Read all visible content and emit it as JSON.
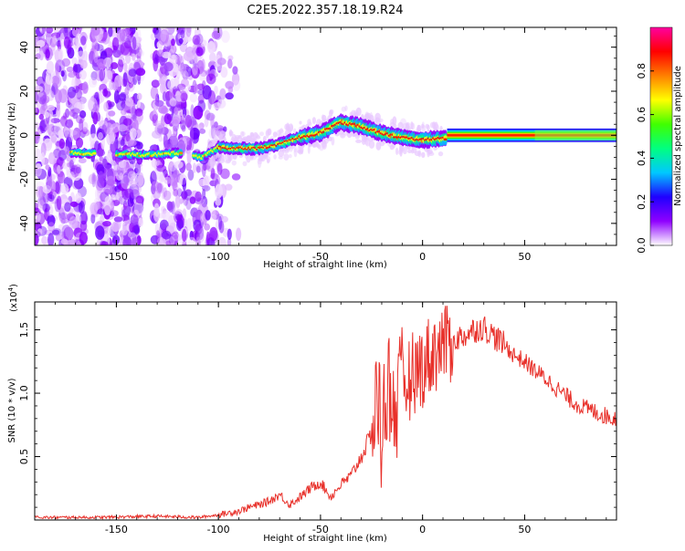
{
  "title": "C2E5.2022.357.18.19.R24",
  "chart_data": [
    {
      "type": "heatmap",
      "xlabel": "Height of straight line (km)",
      "ylabel": "Frequency (Hz)",
      "xlim": [
        -190,
        95
      ],
      "ylim": [
        -50,
        49
      ],
      "x_ticks": [
        -150,
        -100,
        -50,
        0,
        50
      ],
      "y_ticks": [
        -40,
        -20,
        0,
        20,
        40
      ],
      "x_tick_labels": [
        "-150",
        "-100",
        "-50",
        "0",
        "50"
      ],
      "y_tick_labels": [
        "-40",
        "-20",
        "0",
        "20",
        "40"
      ],
      "ridge": {
        "x": [
          -170,
          -150,
          -135,
          -120,
          -108,
          -100,
          -90,
          -80,
          -70,
          -60,
          -50,
          -40,
          -30,
          -20,
          -10,
          0,
          10,
          20,
          40,
          60,
          80,
          95
        ],
        "y": [
          -8,
          -8.5,
          -9,
          -8,
          -10,
          -5.5,
          -6,
          -6,
          -4,
          -1,
          1,
          6,
          4,
          1,
          -1,
          -2,
          -1.5,
          0,
          0,
          0,
          0,
          0
        ]
      },
      "colorbar": {
        "label": "Normalized spectral amplitude",
        "range": [
          0,
          1
        ],
        "ticks": [
          0.0,
          0.2,
          0.4,
          0.6,
          0.8
        ],
        "tick_labels": [
          "0.0",
          "0.2",
          "0.4",
          "0.6",
          "0.8"
        ],
        "colormap": [
          "#ffffff",
          "#8f00ff",
          "#1f00ff",
          "#00c8ff",
          "#00ff80",
          "#40ff00",
          "#ffff00",
          "#ff8000",
          "#ff0000",
          "#ff00a0"
        ]
      }
    },
    {
      "type": "line",
      "xlabel": "Height of straight line (km)",
      "ylabel": "SNR (10 * v/v)",
      "scale_label": "(x10",
      "scale_exp": "4",
      "scale_close": ")",
      "xlim": [
        -190,
        95
      ],
      "ylim": [
        0,
        1.72
      ],
      "x_ticks": [
        -150,
        -100,
        -50,
        0,
        50
      ],
      "y_ticks": [
        0.5,
        1.0,
        1.5
      ],
      "x_tick_labels": [
        "-150",
        "-100",
        "-50",
        "0",
        "50"
      ],
      "y_tick_labels": [
        "0.5",
        "1.0",
        "1.5"
      ],
      "color": "#e8302a",
      "series": [
        {
          "x": [
            -190,
            -160,
            -130,
            -110,
            -100,
            -90,
            -85,
            -80,
            -75,
            -70,
            -65,
            -60,
            -55,
            -50,
            -45,
            -40,
            -35,
            -30,
            -25,
            -22,
            -20,
            -18,
            -15,
            -12,
            -10,
            -5,
            0,
            5,
            10,
            15,
            20,
            25,
            30,
            35,
            40,
            45,
            50,
            55,
            60,
            65,
            70,
            75,
            80,
            85,
            90,
            95
          ],
          "y": [
            0.02,
            0.02,
            0.03,
            0.02,
            0.04,
            0.07,
            0.1,
            0.12,
            0.15,
            0.2,
            0.12,
            0.18,
            0.25,
            0.3,
            0.18,
            0.28,
            0.35,
            0.5,
            0.68,
            1.05,
            0.62,
            1.1,
            0.95,
            0.9,
            1.05,
            1.15,
            1.22,
            1.32,
            1.38,
            1.42,
            1.45,
            1.5,
            1.52,
            1.45,
            1.38,
            1.3,
            1.25,
            1.18,
            1.12,
            1.05,
            0.98,
            0.92,
            0.88,
            0.85,
            0.82,
            0.8
          ]
        }
      ]
    }
  ]
}
